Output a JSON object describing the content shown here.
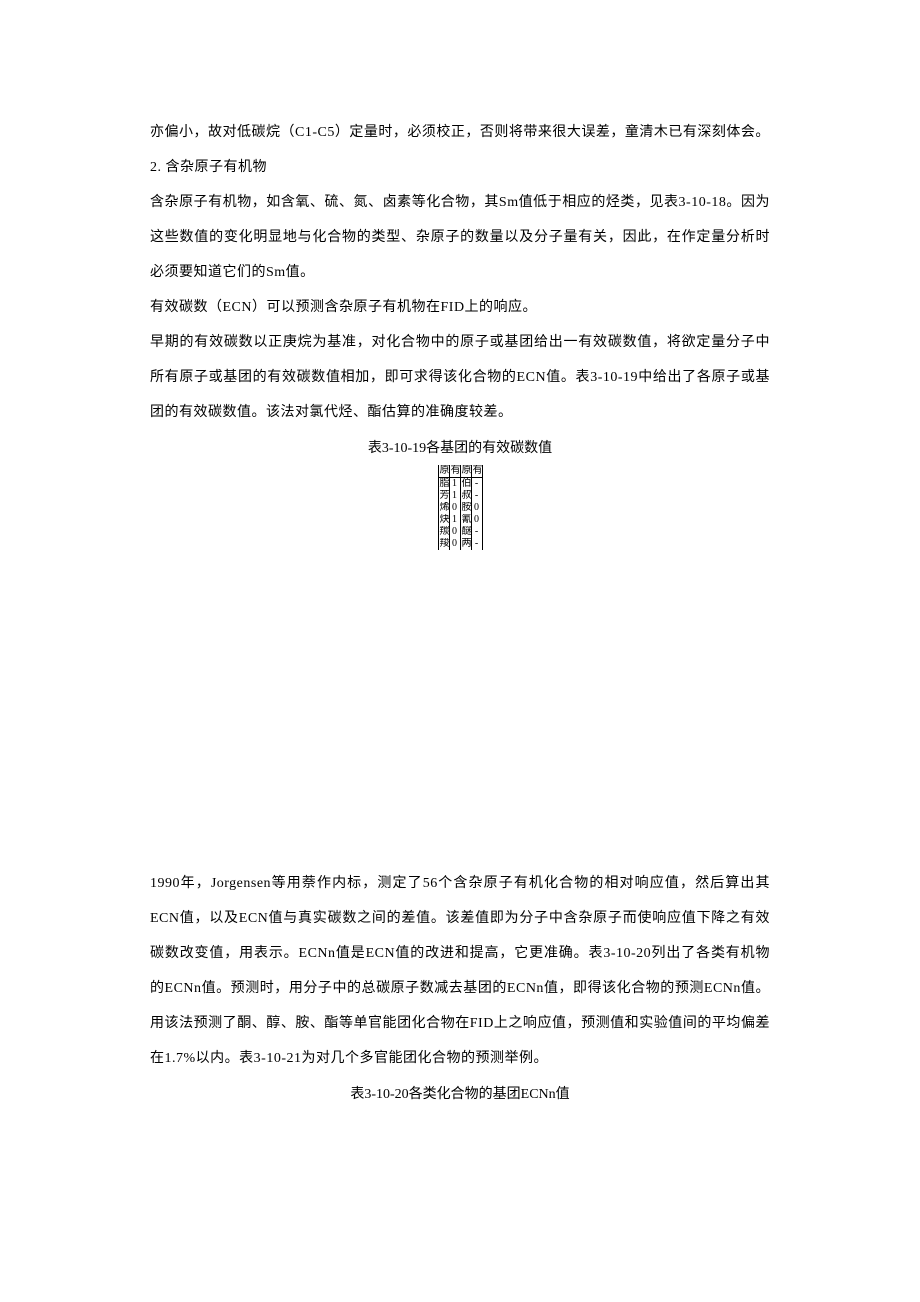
{
  "p1": "亦偏小，故对低碳烷（C1-C5）定量时，必须校正，否则将带来很大误差，童清木已有深刻体会。",
  "p2": "2.     含杂原子有机物",
  "p3": "含杂原子有机物，如含氧、硫、氮、卤素等化合物，其Sm值低于相应的烃类，见表3-10-18。因为这些数值的变化明显地与化合物的类型、杂原子的数量以及分子量有关，因此，在作定量分析时必须要知道它们的Sm值。",
  "p4": "有效碳数（ECN）可以预测含杂原子有机物在FID上的响应。",
  "p5": "早期的有效碳数以正庚烷为基准，对化合物中的原子或基团给出一有效碳数值，将欲定量分子中所有原子或基团的有效碳数值相加，即可求得该化合物的ECN值。表3-10-19中给出了各原子或基团的有效碳数值。该法对氯代烃、酯估算的准确度较差。",
  "caption1": "表3-10-19各基团的有效碳数值",
  "table1": {
    "header": [
      "原",
      "有",
      "原",
      "有"
    ],
    "rows": [
      [
        "脂",
        "1",
        "伯",
        "-"
      ],
      [
        "芳",
        "1",
        "叔",
        "-"
      ],
      [
        "烯",
        "0",
        "胺",
        "0"
      ],
      [
        "炔",
        "1",
        "氰",
        "0"
      ],
      [
        "羰",
        "0",
        "醚",
        "-"
      ],
      [
        "羧",
        "0",
        "两",
        "-"
      ]
    ]
  },
  "p6": "1990年，Jorgensen等用萘作内标，测定了56个含杂原子有机化合物的相对响应值，然后算出其ECN值，以及ECN值与真实碳数之间的差值。该差值即为分子中含杂原子而使响应值下降之有效碳数改变值，用表示。ECNn值是ECN值的改进和提高，它更准确。表3-10-20列出了各类有机物的ECNn值。预测时，用分子中的总碳原子数减去基团的ECNn值，即得该化合物的预测ECNn值。用该法预测了酮、醇、胺、酯等单官能团化合物在FID上之响应值，预测值和实验值间的平均偏差在1.7%以内。表3-10-21为对几个多官能团化合物的预测举例。",
  "caption2": "表3-10-20各类化合物的基团ECNn值"
}
